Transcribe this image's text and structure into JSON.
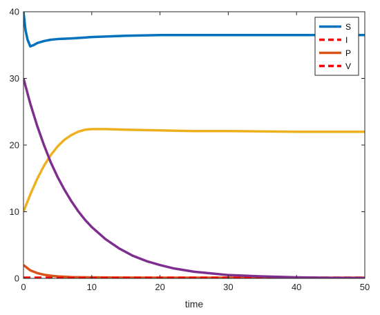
{
  "chart_data": {
    "type": "line",
    "title": "",
    "xlabel": "time",
    "ylabel": "",
    "xlim": [
      0,
      50
    ],
    "ylim": [
      0,
      40
    ],
    "xticks": [
      0,
      10,
      20,
      30,
      40,
      50
    ],
    "yticks": [
      0,
      10,
      20,
      30,
      40
    ],
    "grid": false,
    "legend_position": "top-right",
    "series": [
      {
        "name": "S",
        "color": "#0072BD",
        "dash": "solid",
        "in_legend": true,
        "x": [
          0,
          0.3,
          0.6,
          1,
          1.5,
          2,
          3,
          4,
          5,
          7,
          10,
          15,
          20,
          30,
          40,
          50
        ],
        "y": [
          40,
          37.2,
          35.8,
          34.8,
          35.0,
          35.3,
          35.6,
          35.8,
          35.9,
          36.0,
          36.2,
          36.4,
          36.5,
          36.5,
          36.5,
          36.5
        ]
      },
      {
        "name": "I",
        "color": "#FF0000",
        "dash": "dashed",
        "in_legend": true,
        "x": [
          0,
          5,
          10,
          20,
          30,
          40,
          50
        ],
        "y": [
          0.1,
          0.1,
          0.1,
          0.1,
          0.1,
          0.1,
          0.1
        ]
      },
      {
        "name": "P",
        "color": "#D95319",
        "dash": "solid",
        "in_legend": true,
        "x": [
          0,
          0.5,
          1,
          2,
          3,
          4,
          5,
          7,
          10,
          15,
          20,
          30,
          40,
          50
        ],
        "y": [
          2.0,
          1.6,
          1.2,
          0.8,
          0.55,
          0.4,
          0.3,
          0.2,
          0.15,
          0.12,
          0.1,
          0.1,
          0.1,
          0.1
        ]
      },
      {
        "name": "V",
        "color": "#FF0000",
        "dash": "dashed",
        "in_legend": true,
        "x": [
          0,
          5,
          10,
          20,
          30,
          40,
          50
        ],
        "y": [
          0.05,
          0.05,
          0.05,
          0.05,
          0.05,
          0.05,
          0.05
        ]
      },
      {
        "name": "",
        "color": "#EDB120",
        "dash": "solid",
        "in_legend": false,
        "x": [
          0,
          0.5,
          1,
          2,
          3,
          4,
          5,
          6,
          7,
          8,
          9,
          10,
          12,
          15,
          20,
          25,
          30,
          40,
          50
        ],
        "y": [
          10.0,
          11.3,
          12.6,
          14.9,
          16.9,
          18.5,
          19.8,
          20.8,
          21.5,
          22.0,
          22.3,
          22.4,
          22.4,
          22.3,
          22.2,
          22.1,
          22.1,
          22.0,
          22.0
        ]
      },
      {
        "name": "",
        "color": "#7E2F8E",
        "dash": "solid",
        "in_legend": false,
        "x": [
          0,
          1,
          2,
          3,
          4,
          5,
          6,
          7,
          8,
          9,
          10,
          12,
          14,
          16,
          18,
          20,
          22,
          25,
          28,
          30,
          35,
          40,
          45,
          50
        ],
        "y": [
          30.0,
          26.2,
          22.9,
          20.0,
          17.4,
          15.2,
          13.3,
          11.6,
          10.1,
          8.8,
          7.7,
          5.9,
          4.5,
          3.4,
          2.6,
          2.0,
          1.5,
          1.0,
          0.7,
          0.5,
          0.3,
          0.15,
          0.08,
          0.05
        ]
      }
    ]
  }
}
